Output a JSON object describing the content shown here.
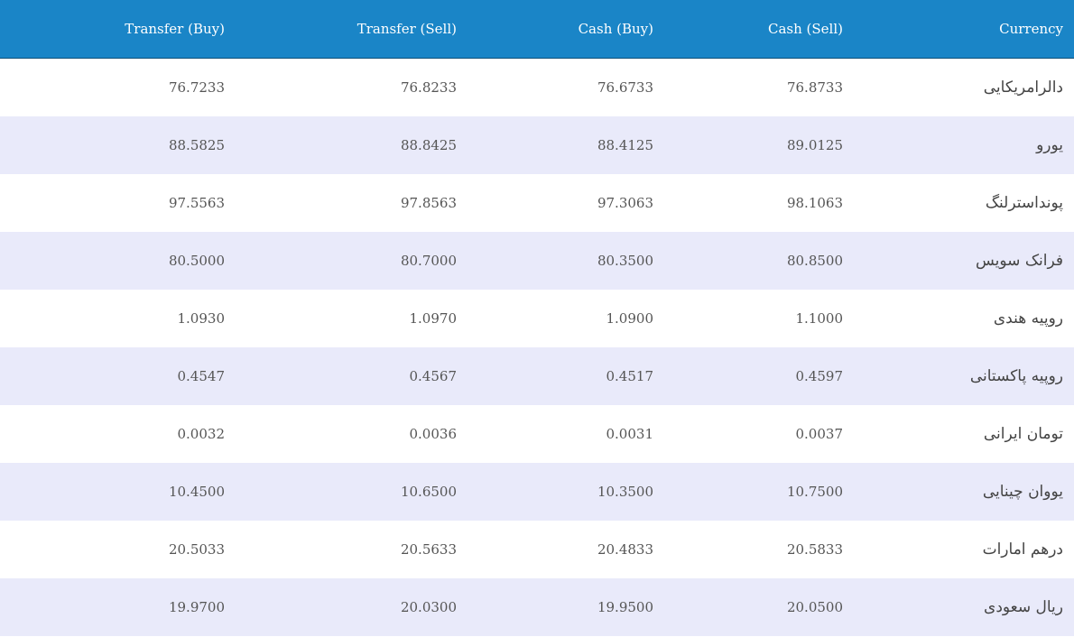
{
  "table": {
    "headers": {
      "transfer_buy": "Transfer (Buy)",
      "transfer_sell": "Transfer (Sell)",
      "cash_buy": "Cash (Buy)",
      "cash_sell": "Cash (Sell)",
      "currency": "Currency"
    },
    "rows": [
      {
        "transfer_buy": "76.7233",
        "transfer_sell": "76.8233",
        "cash_buy": "76.6733",
        "cash_sell": "76.8733",
        "currency": "دالرامریکایی"
      },
      {
        "transfer_buy": "88.5825",
        "transfer_sell": "88.8425",
        "cash_buy": "88.4125",
        "cash_sell": "89.0125",
        "currency": "یورو"
      },
      {
        "transfer_buy": "97.5563",
        "transfer_sell": "97.8563",
        "cash_buy": "97.3063",
        "cash_sell": "98.1063",
        "currency": "پونداسترلنگ"
      },
      {
        "transfer_buy": "80.5000",
        "transfer_sell": "80.7000",
        "cash_buy": "80.3500",
        "cash_sell": "80.8500",
        "currency": "فرانک سویس"
      },
      {
        "transfer_buy": "1.0930",
        "transfer_sell": "1.0970",
        "cash_buy": "1.0900",
        "cash_sell": "1.1000",
        "currency": "روپیه هندی"
      },
      {
        "transfer_buy": "0.4547",
        "transfer_sell": "0.4567",
        "cash_buy": "0.4517",
        "cash_sell": "0.4597",
        "currency": "روپیه پاکستانی"
      },
      {
        "transfer_buy": "0.0032",
        "transfer_sell": "0.0036",
        "cash_buy": "0.0031",
        "cash_sell": "0.0037",
        "currency": "تومان ایرانی"
      },
      {
        "transfer_buy": "10.4500",
        "transfer_sell": "10.6500",
        "cash_buy": "10.3500",
        "cash_sell": "10.7500",
        "currency": "یووان چینایی"
      },
      {
        "transfer_buy": "20.5033",
        "transfer_sell": "20.5633",
        "cash_buy": "20.4833",
        "cash_sell": "20.5833",
        "currency": "درهم امارات"
      },
      {
        "transfer_buy": "19.9700",
        "transfer_sell": "20.0300",
        "cash_buy": "19.9500",
        "cash_sell": "20.0500",
        "currency": "ریال سعودی"
      }
    ]
  },
  "colors": {
    "header_background": "#1a85c7",
    "row_alternate": "#e9eafa"
  }
}
